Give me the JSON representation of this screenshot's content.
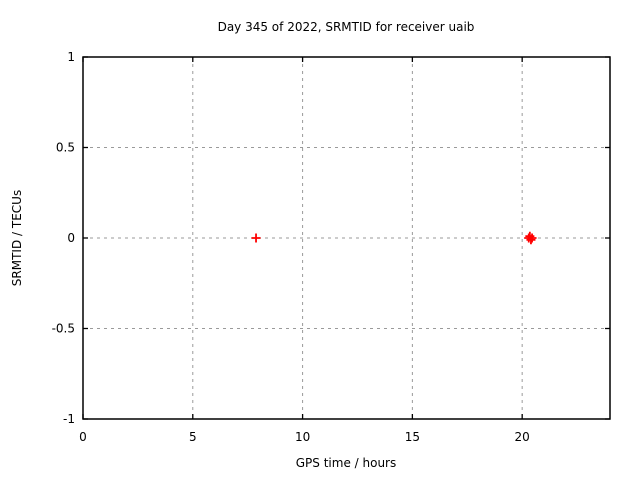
{
  "page": {
    "background": "#ffffff"
  },
  "chart_data": {
    "type": "scatter",
    "title": "Day 345 of 2022, SRMTID for receiver uaib",
    "xlabel": "GPS time / hours",
    "ylabel": "SRMTID / TECUs",
    "xlim": [
      0,
      24
    ],
    "ylim": [
      -1,
      1
    ],
    "xticks": [
      0,
      5,
      10,
      15,
      20
    ],
    "xtick_labels": [
      "0",
      "5",
      "10",
      "15",
      "20"
    ],
    "yticks": [
      -1,
      -0.5,
      0,
      0.5,
      1
    ],
    "ytick_labels": [
      "-1",
      "-0.5",
      "0",
      "0.5",
      "1"
    ],
    "grid": true,
    "legend": "none",
    "marker": "plus",
    "colors": {
      "marker": "#ff0000",
      "grid": "#9a9a9a",
      "axis": "#000000",
      "text": "#000000"
    },
    "series": [
      {
        "name": "SRMTID",
        "points": [
          {
            "x": 7.88,
            "y": 0.0
          },
          {
            "x": 20.3,
            "y": 0.0
          },
          {
            "x": 20.35,
            "y": 0.01
          },
          {
            "x": 20.4,
            "y": -0.01
          },
          {
            "x": 20.45,
            "y": 0.0
          }
        ]
      }
    ]
  }
}
